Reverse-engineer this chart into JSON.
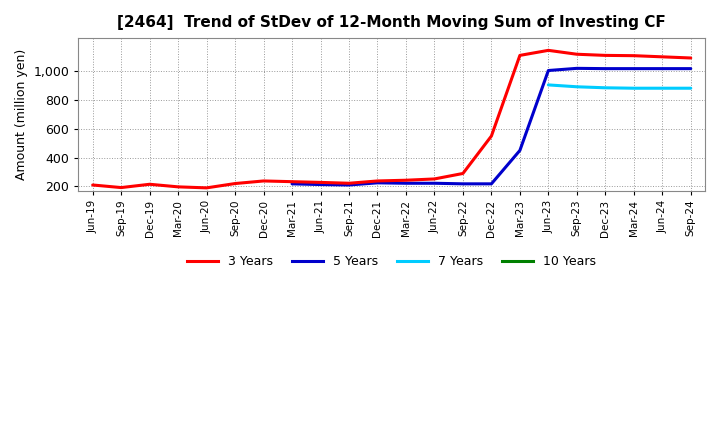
{
  "title": "[2464]  Trend of StDev of 12-Month Moving Sum of Investing CF",
  "ylabel": "Amount (million yen)",
  "background_color": "#ffffff",
  "grid_color": "#aaaaaa",
  "x_labels": [
    "Jun-19",
    "Sep-19",
    "Dec-19",
    "Mar-20",
    "Jun-20",
    "Sep-20",
    "Dec-20",
    "Mar-21",
    "Jun-21",
    "Sep-21",
    "Dec-21",
    "Mar-22",
    "Jun-22",
    "Sep-22",
    "Dec-22",
    "Mar-23",
    "Jun-23",
    "Sep-23",
    "Dec-23",
    "Mar-24",
    "Jun-24",
    "Sep-24"
  ],
  "series": {
    "3 Years": {
      "color": "#ff0000",
      "data_x": [
        0,
        1,
        2,
        3,
        4,
        5,
        6,
        7,
        8,
        9,
        10,
        11,
        12,
        13,
        14,
        15,
        16,
        17,
        18,
        19,
        20,
        21
      ],
      "data_y": [
        210,
        192,
        215,
        197,
        190,
        220,
        238,
        233,
        228,
        222,
        238,
        243,
        252,
        290,
        550,
        1110,
        1145,
        1118,
        1110,
        1108,
        1100,
        1092
      ]
    },
    "5 Years": {
      "color": "#0000cc",
      "data_x": [
        7,
        8,
        9,
        10,
        11,
        12,
        13,
        14,
        15,
        16,
        17,
        18,
        19,
        20,
        21
      ],
      "data_y": [
        218,
        213,
        210,
        225,
        222,
        222,
        218,
        218,
        450,
        1005,
        1020,
        1018,
        1018,
        1018,
        1018
      ]
    },
    "7 Years": {
      "color": "#00ccff",
      "data_x": [
        16,
        17,
        18,
        19,
        20,
        21
      ],
      "data_y": [
        905,
        892,
        885,
        882,
        882,
        882
      ]
    },
    "10 Years": {
      "color": "#008000",
      "data_x": [],
      "data_y": []
    }
  },
  "ylim": [
    170,
    1230
  ],
  "yticks": [
    200,
    400,
    600,
    800,
    1000
  ],
  "ytick_labels": [
    "200",
    "400",
    "600",
    "800",
    "1,000"
  ]
}
